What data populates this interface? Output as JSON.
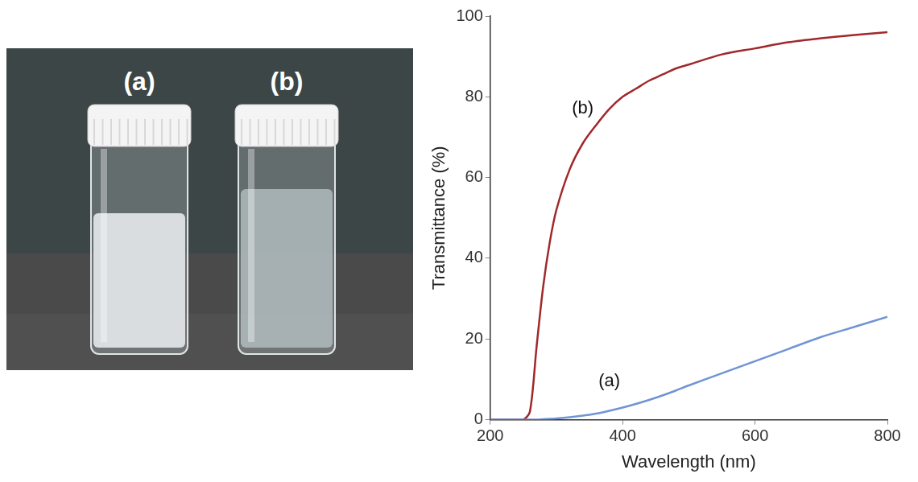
{
  "photo": {
    "labels": [
      "(a)",
      "(b)"
    ]
  },
  "chart_data": {
    "type": "line",
    "x_label": "Wavelength (nm)",
    "y_label": "Transmittance (%)",
    "xlim": [
      200,
      800
    ],
    "xticks": [
      200,
      400,
      600,
      800
    ],
    "ylim": [
      0,
      100
    ],
    "yticks": [
      0,
      20,
      40,
      60,
      80,
      100
    ],
    "grid": false,
    "x": [
      200,
      220,
      240,
      250,
      260,
      270,
      280,
      290,
      300,
      320,
      340,
      360,
      380,
      400,
      420,
      440,
      460,
      480,
      500,
      550,
      600,
      650,
      700,
      750,
      800
    ],
    "series": [
      {
        "name": "(a)",
        "color": "#7094d4",
        "values": [
          0,
          0,
          0,
          0,
          0,
          0,
          0.1,
          0.2,
          0.3,
          0.6,
          1,
          1.5,
          2.2,
          3,
          3.9,
          4.9,
          6,
          7.2,
          8.5,
          11.5,
          14.5,
          17.5,
          20.5,
          23,
          25.5
        ]
      },
      {
        "name": "(b)",
        "color": "#a0282a",
        "values": [
          0,
          0,
          0,
          0,
          2,
          18,
          33,
          44,
          52,
          62,
          68.5,
          73,
          77,
          80,
          82,
          84,
          85.5,
          87,
          88,
          90.5,
          92,
          93.5,
          94.5,
          95.3,
          96
        ]
      }
    ]
  }
}
